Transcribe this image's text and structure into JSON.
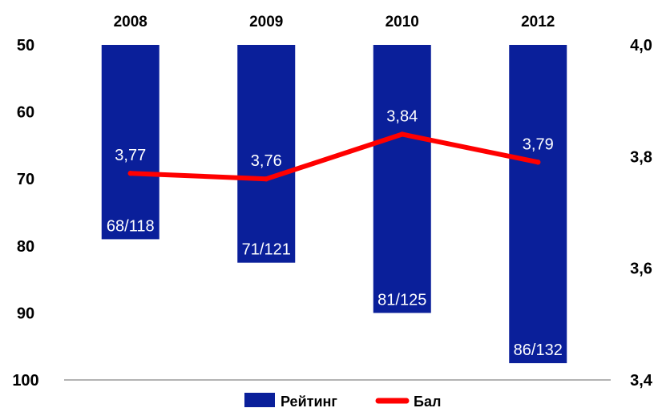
{
  "chart_data": {
    "type": "bar+line",
    "categories": [
      "2008",
      "2009",
      "2010",
      "2012"
    ],
    "series": [
      {
        "name": "Рейтинг",
        "type": "bar",
        "axis": "left",
        "values": [
          79,
          82.5,
          90,
          97.5
        ],
        "labels": [
          "68/118",
          "71/121",
          "81/125",
          "86/132"
        ]
      },
      {
        "name": "Бал",
        "type": "line",
        "axis": "right",
        "values": [
          3.77,
          3.76,
          3.84,
          3.79
        ],
        "labels": [
          "3,77",
          "3,76",
          "3,84",
          "3,79"
        ]
      }
    ],
    "left_axis": {
      "ticks": [
        "50",
        "60",
        "70",
        "80",
        "90",
        "100"
      ],
      "range": [
        50,
        100
      ],
      "inverted": true
    },
    "right_axis": {
      "ticks": [
        "4,0",
        "3,8",
        "3,6",
        "3,4"
      ],
      "range": [
        3.4,
        4.0
      ]
    },
    "x_axis_position": "top",
    "legend_position": "bottom-center",
    "grid": false,
    "colors": {
      "bar": "#0a1f9a",
      "line": "#ff0000",
      "bar_label": "#ffffff",
      "line_label": "#ffffff"
    }
  }
}
